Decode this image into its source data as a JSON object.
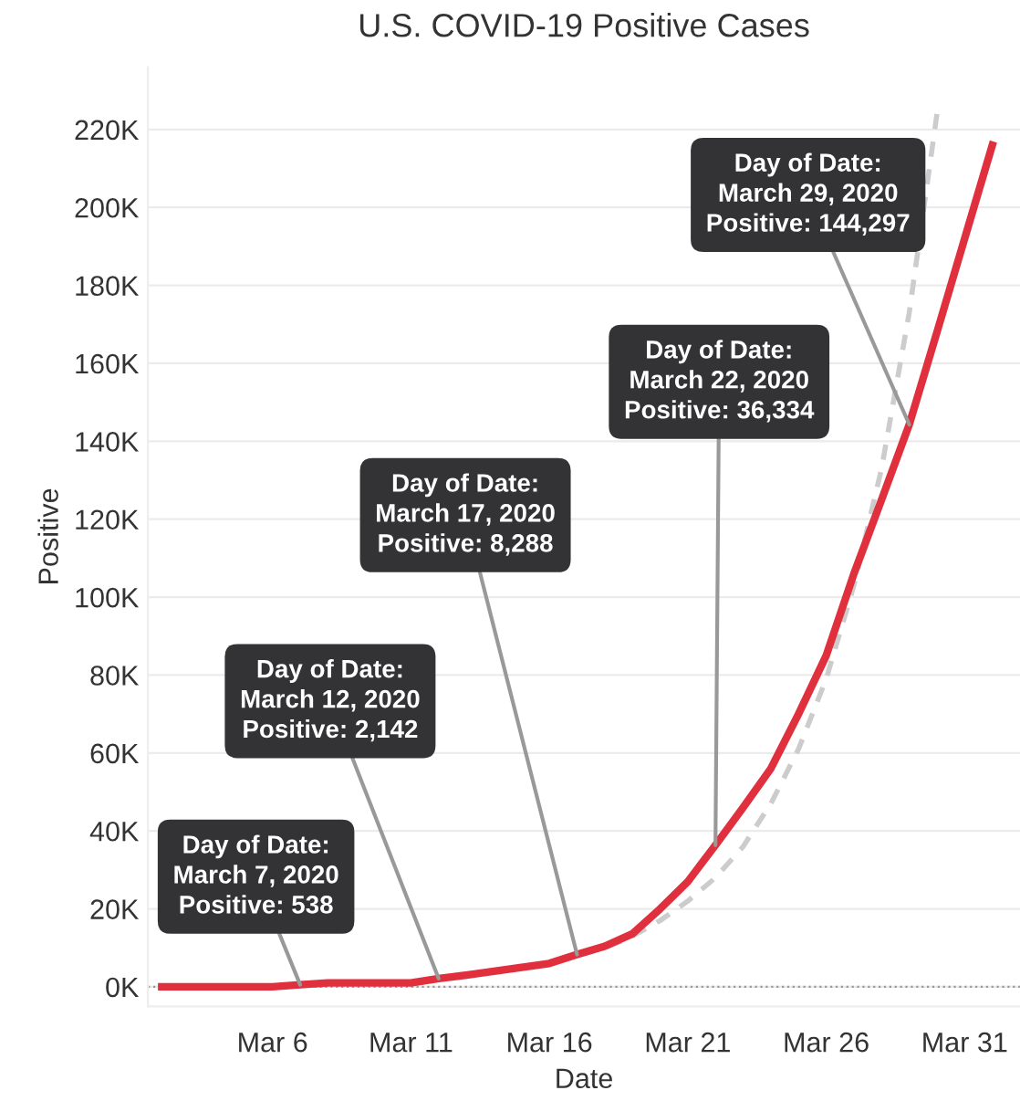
{
  "chart_data": {
    "type": "line",
    "title": "U.S. COVID-19 Positive Cases",
    "xlabel": "Date",
    "ylabel": "Positive",
    "xlim": [
      "2020-03-01T12:00",
      "2020-04-02"
    ],
    "ylim": [
      -5000,
      236000
    ],
    "xticks": [
      {
        "value": "2020-03-06",
        "label": "Mar 6"
      },
      {
        "value": "2020-03-11",
        "label": "Mar 11"
      },
      {
        "value": "2020-03-16",
        "label": "Mar 16"
      },
      {
        "value": "2020-03-21",
        "label": "Mar 21"
      },
      {
        "value": "2020-03-26",
        "label": "Mar 26"
      },
      {
        "value": "2020-03-31",
        "label": "Mar 31"
      }
    ],
    "yticks": [
      {
        "value": 0,
        "label": "0K"
      },
      {
        "value": 20000,
        "label": "20K"
      },
      {
        "value": 40000,
        "label": "40K"
      },
      {
        "value": 60000,
        "label": "60K"
      },
      {
        "value": 80000,
        "label": "80K"
      },
      {
        "value": 100000,
        "label": "100K"
      },
      {
        "value": 120000,
        "label": "120K"
      },
      {
        "value": 140000,
        "label": "140K"
      },
      {
        "value": 160000,
        "label": "160K"
      },
      {
        "value": 180000,
        "label": "180K"
      },
      {
        "value": 200000,
        "label": "200K"
      },
      {
        "value": 220000,
        "label": "220K"
      }
    ],
    "grid": "y",
    "legend": false,
    "marker": "none",
    "ref_lines": [
      {
        "axis": "y",
        "value": 0,
        "color": "#999999",
        "line_style": "dotted"
      }
    ],
    "series": [
      {
        "color": "#cccccc",
        "line_style": "dashed",
        "x": [
          "2020-03-16",
          "2020-03-17",
          "2020-03-18",
          "2020-03-19",
          "2020-03-20",
          "2020-03-21",
          "2020-03-22",
          "2020-03-23",
          "2020-03-24",
          "2020-03-25",
          "2020-03-26",
          "2020-03-27",
          "2020-03-28",
          "2020-03-29",
          "2020-03-30"
        ],
        "values": [
          6000,
          8000,
          10000,
          13000,
          17000,
          22000,
          28000,
          36000,
          47000,
          61000,
          79000,
          103000,
          133000,
          173000,
          224000
        ]
      },
      {
        "color": "#e0303e",
        "line_style": "solid",
        "x": [
          "2020-03-02",
          "2020-03-03",
          "2020-03-04",
          "2020-03-05",
          "2020-03-06",
          "2020-03-07",
          "2020-03-08",
          "2020-03-09",
          "2020-03-10",
          "2020-03-11",
          "2020-03-12",
          "2020-03-13",
          "2020-03-14",
          "2020-03-15",
          "2020-03-16",
          "2020-03-17",
          "2020-03-18",
          "2020-03-19",
          "2020-03-20",
          "2020-03-21",
          "2020-03-22",
          "2020-03-23",
          "2020-03-24",
          "2020-03-25",
          "2020-03-26",
          "2020-03-27",
          "2020-03-28",
          "2020-03-29",
          "2020-03-30",
          "2020-03-31",
          "2020-04-01"
        ],
        "values": [
          0,
          0,
          0,
          0,
          0,
          538,
          1000,
          1000,
          1000,
          1000,
          2142,
          3000,
          4000,
          5000,
          6000,
          8288,
          10400,
          13600,
          20000,
          27000,
          36334,
          46000,
          56000,
          70000,
          85000,
          106000,
          125000,
          144297,
          168000,
          192000,
          216000
        ]
      }
    ],
    "annotations": [
      {
        "text": "Day of Date:\nMarch 7, 2020\nPositive: 538",
        "x": "2020-03-07",
        "y": 538
      },
      {
        "text": "Day of Date:\nMarch 12, 2020\nPositive: 2,142",
        "x": "2020-03-12",
        "y": 2142
      },
      {
        "text": "Day of Date:\nMarch 17, 2020\nPositive: 8,288",
        "x": "2020-03-17",
        "y": 8288
      },
      {
        "text": "Day of Date:\nMarch 22, 2020\nPositive: 36,334",
        "x": "2020-03-22",
        "y": 36334
      },
      {
        "text": "Day of Date:\nMarch 29, 2020\nPositive: 144,297",
        "x": "2020-03-29",
        "y": 144297
      }
    ]
  }
}
